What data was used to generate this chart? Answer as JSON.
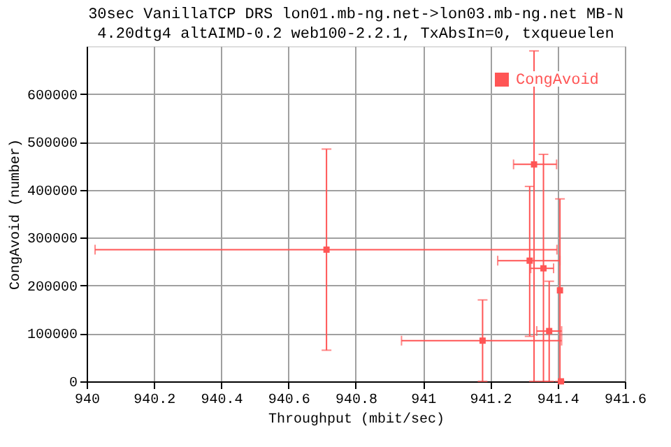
{
  "chart_data": {
    "type": "scatter",
    "title": "30sec VanillaTCP DRS lon01.mb-ng.net->lon03.mb-ng.net MB-N",
    "subtitle": "4.20dtg4 altAIMD-0.2 web100-2.2.1, TxAbsIn=0, txqueuelen",
    "xlabel": "Throughput (mbit/sec)",
    "ylabel": "CongAvoid (number)",
    "series": [
      {
        "name": "CongAvoid",
        "color": "#ff5555",
        "x": [
          940.713,
          941.33,
          941.317,
          941.358,
          941.375,
          941.177,
          941.407,
          941.41
        ],
        "values": [
          275000,
          453000,
          252000,
          236000,
          105000,
          85000,
          190000,
          0
        ],
        "errors": [
          [
            65000,
            485000
          ],
          [
            0,
            690000
          ],
          [
            94000,
            407000
          ],
          [
            0,
            474000
          ],
          [
            0,
            209000
          ],
          [
            0,
            170000
          ],
          [
            0,
            381000
          ],
          null
        ],
        "xerrors": [
          [
            940.025,
            941.398
          ],
          [
            941.269,
            941.397
          ],
          [
            941.222,
            941.407
          ],
          [
            941.32,
            941.388
          ],
          [
            941.338,
            941.412
          ],
          [
            940.936,
            941.412
          ],
          null,
          null
        ]
      }
    ],
    "xlim": [
      940,
      941.6
    ],
    "xticks": [
      940,
      940.2,
      940.4,
      940.6,
      940.8,
      941,
      941.2,
      941.4,
      941.6
    ],
    "ylim": [
      0,
      700000
    ],
    "yticks": [
      0,
      100000,
      200000,
      300000,
      400000,
      500000,
      600000
    ],
    "grid": true,
    "legend": "top right",
    "marker": "square"
  }
}
